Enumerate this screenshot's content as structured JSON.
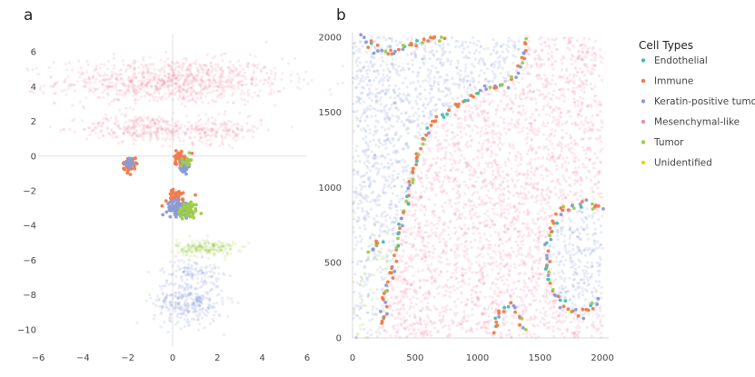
{
  "figure": {
    "panel_labels": [
      "a",
      "b"
    ]
  },
  "legend": {
    "title": "Cell Types",
    "items": [
      {
        "label": "Endothelial",
        "color": "#3fc0b0"
      },
      {
        "label": "Immune",
        "color": "#f07a4a"
      },
      {
        "label": "Keratin-positive tumor",
        "color": "#8a9bd6"
      },
      {
        "label": "Mesenchymal-like",
        "color": "#f08aa8"
      },
      {
        "label": "Tumor",
        "color": "#9ccc4a"
      },
      {
        "label": "Unidentified",
        "color": "#f0d020"
      }
    ]
  },
  "chart_data": [
    {
      "type": "scatter",
      "panel": "a",
      "title": "",
      "xlabel": "",
      "ylabel": "",
      "xlim": [
        -6,
        6
      ],
      "ylim": [
        -11,
        7
      ],
      "xticks": [
        -6,
        -4,
        -2,
        0,
        2,
        4,
        6
      ],
      "yticks": [
        -10,
        -8,
        -6,
        -4,
        -2,
        0,
        2,
        4,
        6
      ],
      "xtick_labels": [
        "−6",
        "−4",
        "−2",
        "0",
        "2",
        "4",
        "6"
      ],
      "ytick_labels": [
        "−10",
        "−8",
        "−6",
        "−4",
        "−2",
        "0",
        "2",
        "4",
        "6"
      ],
      "zero_lines": true,
      "grid": false,
      "clusters": [
        {
          "name": "Mesenchymal-like",
          "faded": true,
          "regions": [
            {
              "cx": 0.0,
              "cy": 4.3,
              "sx": 4.6,
              "sy": 1.2,
              "n": 900
            },
            {
              "cx": -1.5,
              "cy": 1.6,
              "sx": 2.3,
              "sy": 0.7,
              "n": 250
            },
            {
              "cx": 1.8,
              "cy": 1.5,
              "sx": 2.0,
              "sy": 0.7,
              "n": 200
            }
          ]
        },
        {
          "name": "Keratin-positive tumor",
          "faded": true,
          "regions": [
            {
              "cx": 0.7,
              "cy": -8.4,
              "sx": 1.4,
              "sy": 1.2,
              "n": 330
            },
            {
              "cx": 0.9,
              "cy": -6.6,
              "sx": 1.2,
              "sy": 0.6,
              "n": 100
            }
          ]
        },
        {
          "name": "Tumor",
          "faded": true,
          "regions": [
            {
              "cx": 1.5,
              "cy": -5.3,
              "sx": 1.2,
              "sy": 0.45,
              "n": 200
            }
          ]
        },
        {
          "name": "Immune",
          "faded": false,
          "regions": [
            {
              "cx": -1.9,
              "cy": -0.5,
              "sx": 0.28,
              "sy": 0.35,
              "n": 40
            },
            {
              "cx": 0.4,
              "cy": -0.1,
              "sx": 0.35,
              "sy": 0.4,
              "n": 40
            },
            {
              "cx": 0.1,
              "cy": -2.4,
              "sx": 0.6,
              "sy": 0.5,
              "n": 35
            }
          ]
        },
        {
          "name": "Keratin-positive tumor",
          "faded": false,
          "regions": [
            {
              "cx": 0.3,
              "cy": -3.0,
              "sx": 0.5,
              "sy": 0.4,
              "n": 90
            },
            {
              "cx": -1.9,
              "cy": -0.4,
              "sx": 0.2,
              "sy": 0.3,
              "n": 15
            },
            {
              "cx": 0.5,
              "cy": -0.6,
              "sx": 0.2,
              "sy": 0.4,
              "n": 25
            }
          ]
        },
        {
          "name": "Tumor",
          "faded": false,
          "regions": [
            {
              "cx": 0.7,
              "cy": -3.1,
              "sx": 0.4,
              "sy": 0.45,
              "n": 60
            },
            {
              "cx": 0.6,
              "cy": -0.3,
              "sx": 0.2,
              "sy": 0.3,
              "n": 15
            }
          ]
        }
      ]
    },
    {
      "type": "scatter",
      "panel": "b",
      "title": "",
      "xlabel": "",
      "ylabel": "",
      "xlim": [
        0,
        2050
      ],
      "ylim": [
        0,
        2030
      ],
      "xticks": [
        0,
        500,
        1000,
        1500,
        2000
      ],
      "yticks": [
        0,
        500,
        1000,
        1500,
        2000
      ],
      "xtick_labels": [
        "0",
        "500",
        "1000",
        "1500",
        "2000"
      ],
      "ytick_labels": [
        "0",
        "500",
        "1000",
        "1500",
        "2000"
      ],
      "grid": false,
      "background_regions": [
        {
          "name": "Keratin-positive tumor",
          "faded": true,
          "region": "left",
          "n": 1300
        },
        {
          "name": "Keratin-positive tumor",
          "faded": true,
          "region": "right-lobe",
          "n": 420
        },
        {
          "name": "Mesenchymal-like",
          "faded": true,
          "region": "center",
          "n": 2600
        },
        {
          "name": "Tumor",
          "faded": true,
          "region": "left-bottom",
          "n": 120
        }
      ],
      "boundaries": [
        {
          "name": "left-interface",
          "points": [
            [
              1390,
              2000
            ],
            [
              1350,
              1800
            ],
            [
              1250,
              1700
            ],
            [
              1050,
              1650
            ],
            [
              850,
              1550
            ],
            [
              650,
              1450
            ],
            [
              550,
              1300
            ],
            [
              480,
              1100
            ],
            [
              430,
              900
            ],
            [
              370,
              700
            ],
            [
              330,
              500
            ],
            [
              280,
              350
            ],
            [
              260,
              200
            ],
            [
              230,
              50
            ]
          ]
        },
        {
          "name": "top-cluster",
          "points": [
            [
              80,
              2000
            ],
            [
              200,
              1920
            ],
            [
              320,
              1880
            ],
            [
              420,
              1950
            ],
            [
              600,
              1980
            ],
            [
              750,
              2000
            ]
          ]
        },
        {
          "name": "right-lobe",
          "points": [
            [
              2000,
              850
            ],
            [
              1850,
              900
            ],
            [
              1700,
              860
            ],
            [
              1600,
              750
            ],
            [
              1550,
              580
            ],
            [
              1580,
              350
            ],
            [
              1700,
              200
            ],
            [
              1850,
              150
            ],
            [
              2000,
              280
            ]
          ]
        },
        {
          "name": "bottom-bump",
          "points": [
            [
              1130,
              40
            ],
            [
              1180,
              180
            ],
            [
              1260,
              220
            ],
            [
              1330,
              150
            ],
            [
              1390,
              40
            ]
          ]
        },
        {
          "name": "left-small",
          "points": [
            [
              150,
              560
            ],
            [
              200,
              650
            ],
            [
              250,
              620
            ]
          ]
        }
      ]
    }
  ]
}
